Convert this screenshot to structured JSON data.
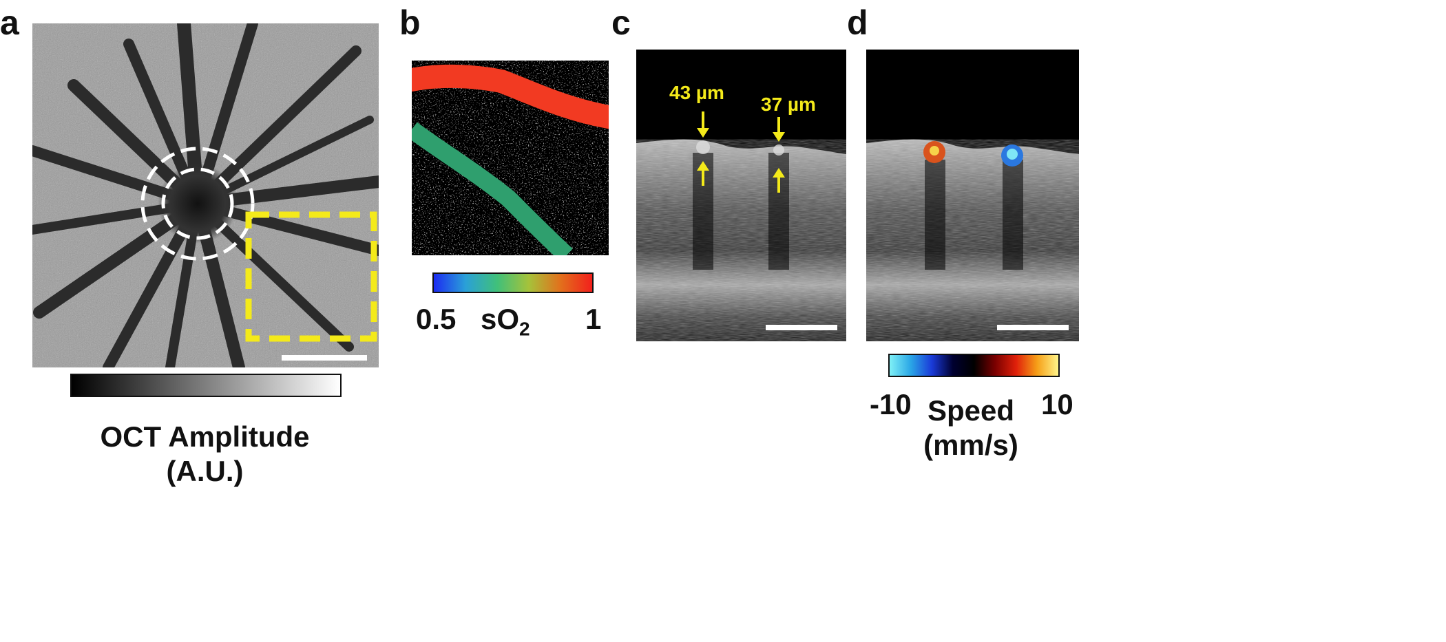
{
  "panels": {
    "a": {
      "letter": "a",
      "colorbar_title_line1": "OCT Amplitude",
      "colorbar_title_line2": "(A.U.)"
    },
    "b": {
      "letter": "b",
      "colorbar_min": "0.5",
      "colorbar_max": "1",
      "colorbar_title_main": "sO",
      "colorbar_title_sub": "2"
    },
    "c": {
      "letter": "c",
      "vessel_1_diameter": "43 µm",
      "vessel_2_diameter": "37 µm"
    },
    "d": {
      "letter": "d",
      "colorbar_min": "-10",
      "colorbar_max": "10",
      "colorbar_title_line1": "Speed",
      "colorbar_title_line2": "(mm/s)"
    }
  },
  "colors": {
    "annotation_yellow": "#f4ea1a",
    "artery_red": "#f23a22",
    "vein_green": "#2f9f6e",
    "artery_flow": "#d9531d",
    "vein_flow": "#2a78e0"
  }
}
